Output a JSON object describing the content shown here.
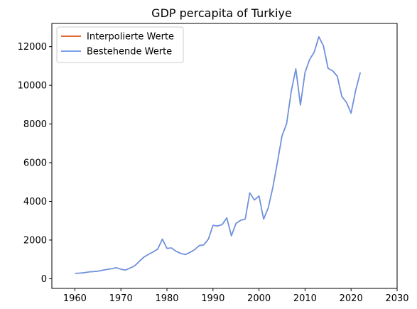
{
  "chart_data": {
    "type": "line",
    "title": "GDP percapita of Turkiye",
    "xlabel": "",
    "ylabel": "",
    "xlim": [
      1955,
      2030
    ],
    "ylim": [
      -500,
      13200
    ],
    "xticks": [
      1960,
      1970,
      1980,
      1990,
      2000,
      2010,
      2020,
      2030
    ],
    "yticks": [
      0,
      2000,
      4000,
      6000,
      8000,
      10000,
      12000
    ],
    "grid": false,
    "legend_position": "top-left",
    "x": [
      1960,
      1961,
      1962,
      1963,
      1964,
      1965,
      1966,
      1967,
      1968,
      1969,
      1970,
      1971,
      1972,
      1973,
      1974,
      1975,
      1976,
      1977,
      1978,
      1979,
      1980,
      1981,
      1982,
      1983,
      1984,
      1985,
      1986,
      1987,
      1988,
      1989,
      1990,
      1991,
      1992,
      1993,
      1994,
      1995,
      1996,
      1997,
      1998,
      1999,
      2000,
      2001,
      2002,
      2003,
      2004,
      2005,
      2006,
      2007,
      2008,
      2009,
      2010,
      2011,
      2012,
      2013,
      2014,
      2015,
      2016,
      2017,
      2018,
      2019,
      2020,
      2021,
      2022
    ],
    "series": [
      {
        "name": "Interpolierte Werte",
        "color": "#e0501a",
        "values": [
          280,
          290,
          310,
          350,
          370,
          390,
          440,
          480,
          520,
          570,
          490,
          450,
          550,
          670,
          900,
          1120,
          1260,
          1390,
          1530,
          2050,
          1570,
          1590,
          1420,
          1310,
          1250,
          1360,
          1500,
          1710,
          1750,
          2050,
          2760,
          2730,
          2800,
          3150,
          2220,
          2860,
          3020,
          3080,
          4440,
          4070,
          4280,
          3080,
          3660,
          4720,
          6020,
          7390,
          8020,
          9690,
          10850,
          8980,
          10670,
          11340,
          11720,
          12510,
          12040,
          10880,
          10750,
          10470,
          9420,
          9120,
          8560,
          9740,
          10660
        ]
      },
      {
        "name": "Bestehende Werte",
        "color": "#6495ed",
        "values": [
          280,
          290,
          310,
          350,
          370,
          390,
          440,
          480,
          520,
          570,
          490,
          450,
          550,
          670,
          900,
          1120,
          1260,
          1390,
          1530,
          2050,
          1570,
          1590,
          1420,
          1310,
          1250,
          1360,
          1500,
          1710,
          1750,
          2050,
          2760,
          2730,
          2800,
          3150,
          2220,
          2860,
          3020,
          3080,
          4440,
          4070,
          4280,
          3080,
          3660,
          4720,
          6020,
          7390,
          8020,
          9690,
          10850,
          8980,
          10670,
          11340,
          11720,
          12510,
          12040,
          10880,
          10750,
          10470,
          9420,
          9120,
          8560,
          9740,
          10660
        ]
      }
    ]
  }
}
